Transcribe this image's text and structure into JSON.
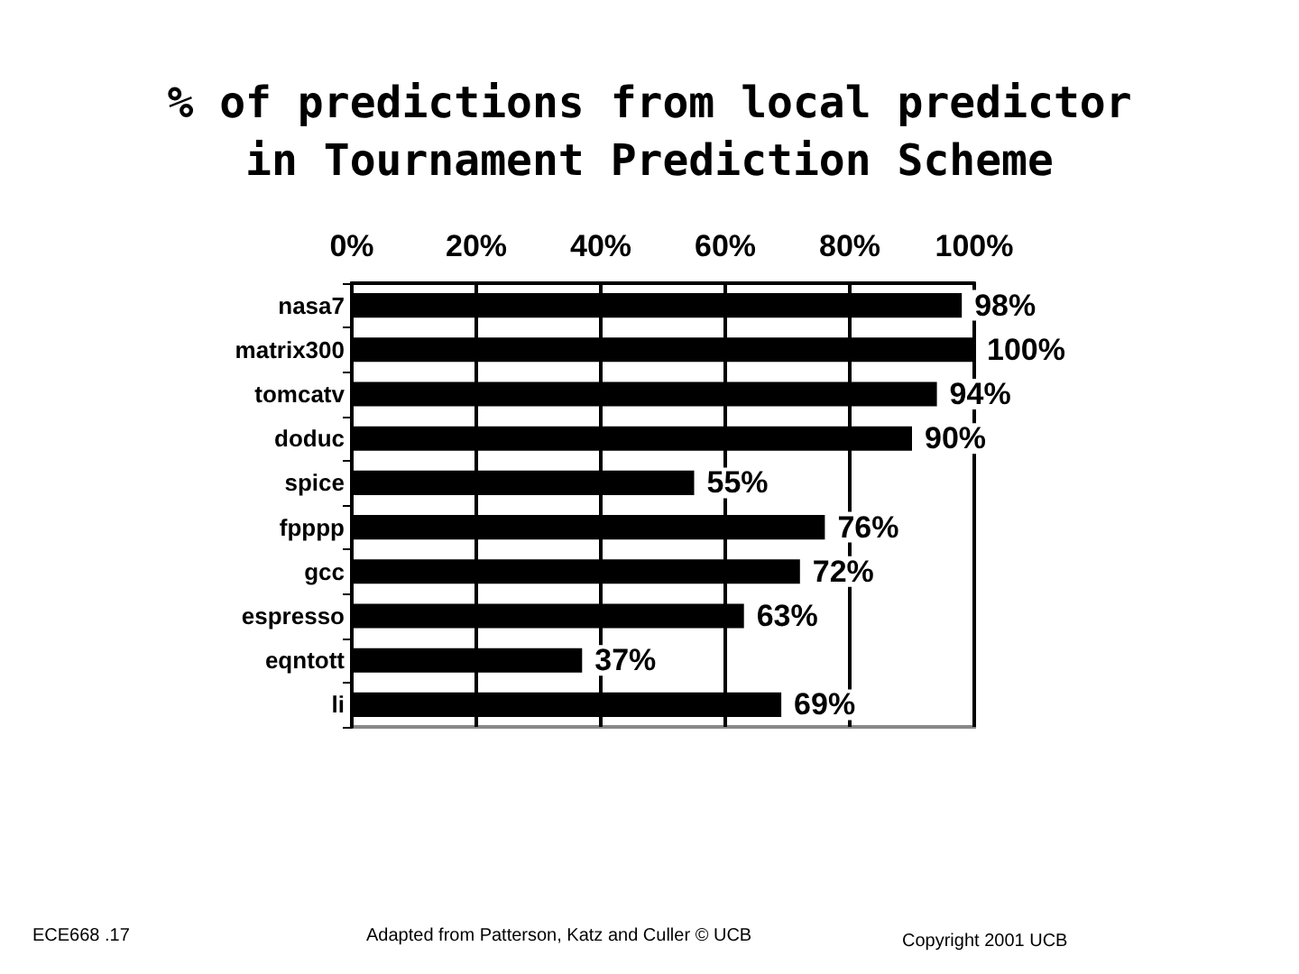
{
  "chart_data": {
    "type": "bar",
    "orientation": "horizontal",
    "title": "% of predictions from local predictor\nin Tournament Prediction Scheme",
    "categories": [
      "nasa7",
      "matrix300",
      "tomcatv",
      "doduc",
      "spice",
      "fpppp",
      "gcc",
      "espresso",
      "eqntott",
      "li"
    ],
    "values": [
      98,
      100,
      94,
      90,
      55,
      76,
      72,
      63,
      37,
      69
    ],
    "value_labels": [
      "98%",
      "100%",
      "94%",
      "90%",
      "55%",
      "76%",
      "72%",
      "63%",
      "37%",
      "69%"
    ],
    "color": "#000000",
    "xlim": [
      0,
      100
    ],
    "xticks": [
      {
        "value": 0,
        "label": "0%"
      },
      {
        "value": 20,
        "label": "20%"
      },
      {
        "value": 40,
        "label": "40%"
      },
      {
        "value": 60,
        "label": "60%"
      },
      {
        "value": 80,
        "label": "80%"
      },
      {
        "value": 100,
        "label": "100%"
      }
    ],
    "grid": "x",
    "annotations": [
      "ECE668 .17",
      "Adapted from Patterson, Katz and Culler © UCB",
      "Copyright 2001 UCB"
    ]
  }
}
